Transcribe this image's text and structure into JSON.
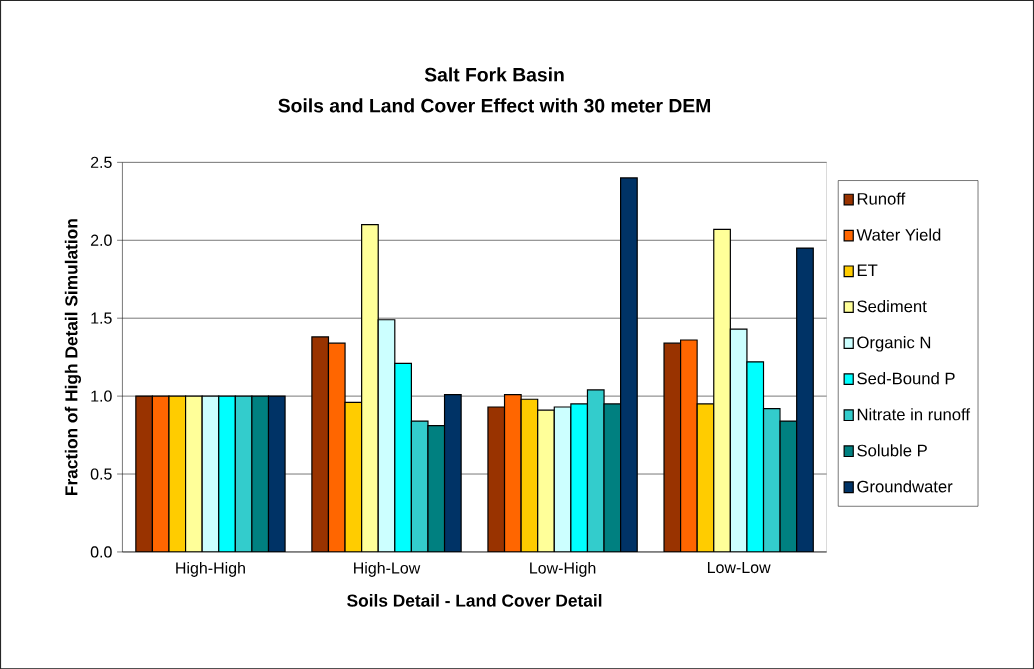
{
  "chart_data": {
    "type": "bar",
    "title": "Salt Fork Basin",
    "subtitle": "Soils and Land Cover Effect with 30 meter DEM",
    "xlabel": "Soils Detail - Land Cover Detail",
    "ylabel": "Fraction of High Detail Simulation",
    "categories": [
      "High-High",
      "High-Low",
      "Low-High",
      "Low-Low"
    ],
    "series": [
      {
        "name": "Runoff",
        "color": "#993300",
        "values": [
          1.0,
          1.38,
          0.93,
          1.34
        ]
      },
      {
        "name": "Water Yield",
        "color": "#ff6600",
        "values": [
          1.0,
          1.34,
          1.01,
          1.36
        ]
      },
      {
        "name": "ET",
        "color": "#ffcc00",
        "values": [
          1.0,
          0.96,
          0.98,
          0.95
        ]
      },
      {
        "name": "Sediment",
        "color": "#ffff99",
        "values": [
          1.0,
          2.1,
          0.91,
          2.07
        ]
      },
      {
        "name": "Organic N",
        "color": "#ccffff",
        "values": [
          1.0,
          1.49,
          0.93,
          1.43
        ]
      },
      {
        "name": "Sed-Bound P",
        "color": "#00ffff",
        "values": [
          1.0,
          1.21,
          0.95,
          1.22
        ]
      },
      {
        "name": "Nitrate in runoff",
        "color": "#33cccc",
        "values": [
          1.0,
          0.84,
          1.04,
          0.92
        ]
      },
      {
        "name": "Soluble P",
        "color": "#008080",
        "values": [
          1.0,
          0.81,
          0.95,
          0.84
        ]
      },
      {
        "name": "Groundwater",
        "color": "#003366",
        "values": [
          1.0,
          1.01,
          2.4,
          1.95
        ]
      }
    ],
    "ylim": [
      0,
      2.5
    ],
    "yticks": [
      {
        "value": 0,
        "label": "0.0"
      },
      {
        "value": 0.5,
        "label": "0.5"
      },
      {
        "value": 1,
        "label": "1.0"
      },
      {
        "value": 1.5,
        "label": "1.5"
      },
      {
        "value": 2,
        "label": "2.0"
      },
      {
        "value": 2.5,
        "label": "2.5"
      }
    ],
    "grid": "y",
    "legend": "right"
  }
}
